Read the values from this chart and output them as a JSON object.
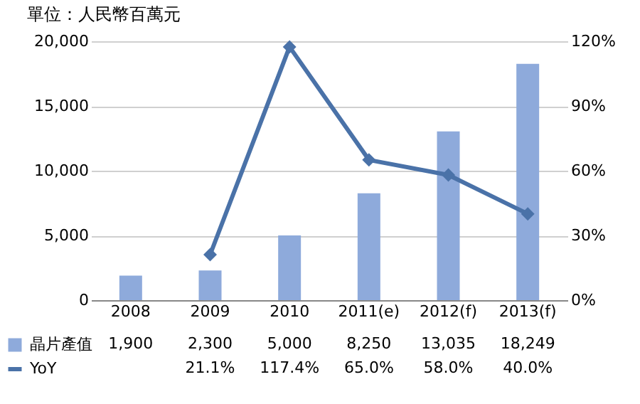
{
  "chart_data": {
    "type": "bar",
    "title": "單位：人民幣百萬元",
    "categories": [
      "2008",
      "2009",
      "2010",
      "2011(e)",
      "2012(f)",
      "2013(f)"
    ],
    "series": [
      {
        "name": "晶片產值",
        "color": "#8eaadb",
        "values": [
          1900,
          2300,
          5000,
          8250,
          13035,
          18249
        ],
        "value_labels": [
          "1,900",
          "2,300",
          "5,000",
          "8,250",
          "13,035",
          "18,249"
        ]
      },
      {
        "name": "YoY",
        "type": "line",
        "axis": "y2",
        "color": "#4a72a8",
        "values": [
          null,
          21.1,
          117.4,
          65.0,
          58.0,
          40.0
        ],
        "value_labels": [
          null,
          "21.1%",
          "117.4%",
          "65.0%",
          "58.0%",
          "40.0%"
        ]
      }
    ],
    "ylim": [
      0,
      20000
    ],
    "yticks": [
      {
        "value": 0,
        "label": "0"
      },
      {
        "value": 5000,
        "label": "5,000"
      },
      {
        "value": 10000,
        "label": "10,000"
      },
      {
        "value": 15000,
        "label": "15,000"
      },
      {
        "value": 20000,
        "label": "20,000"
      }
    ],
    "y2lim": [
      0,
      120
    ],
    "y2ticks": [
      {
        "value": 0,
        "label": "0%"
      },
      {
        "value": 30,
        "label": "30%"
      },
      {
        "value": 60,
        "label": "60%"
      },
      {
        "value": 90,
        "label": "90%"
      },
      {
        "value": 120,
        "label": "120%"
      }
    ],
    "grid": "y",
    "legend": "bottom left",
    "marker": "diamond",
    "line_style": "solid"
  }
}
